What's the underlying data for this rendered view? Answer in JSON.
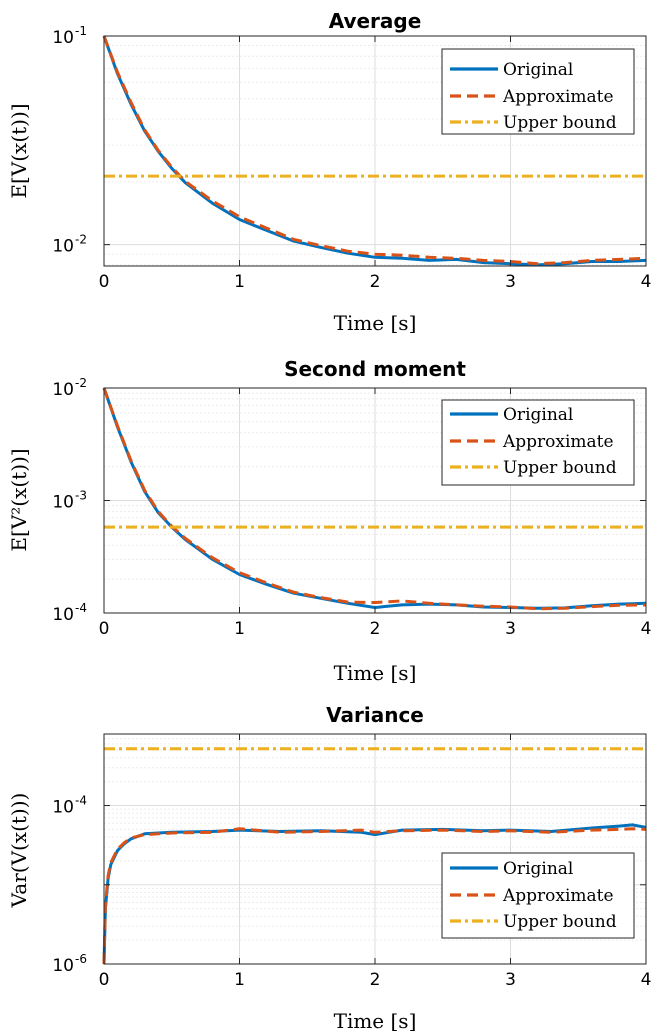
{
  "colors": {
    "original": "#0072BD",
    "approximate": "#D95319",
    "upper_bound": "#EDB120",
    "grid": "#dddddd",
    "minor_grid": "#ececec"
  },
  "chart_data": [
    {
      "type": "line",
      "title": "Average",
      "xlabel": "Time [s]",
      "ylabel": "E[V(x(t))]",
      "yscale": "log",
      "xlim": [
        0,
        4
      ],
      "ylim": [
        0.0079,
        0.1
      ],
      "xticks": [
        "0",
        "1",
        "2",
        "3",
        "4"
      ],
      "yticks": [
        {
          "base": "10",
          "exp": "-1",
          "value": 0.1
        },
        {
          "base": "10",
          "exp": "-2",
          "value": 0.01
        }
      ],
      "grid": true,
      "legend": {
        "position": "top-right",
        "entries": [
          "Original",
          "Approximate",
          "Upper bound"
        ]
      },
      "series": [
        {
          "name": "Original",
          "style": "solid",
          "x": [
            0,
            0.1,
            0.2,
            0.3,
            0.4,
            0.5,
            0.6,
            0.8,
            1.0,
            1.2,
            1.4,
            1.6,
            1.8,
            2.0,
            2.2,
            2.4,
            2.6,
            2.8,
            3.0,
            3.2,
            3.4,
            3.6,
            3.8,
            4.0
          ],
          "y": [
            0.1,
            0.066,
            0.047,
            0.035,
            0.028,
            0.0232,
            0.0198,
            0.0158,
            0.0132,
            0.0117,
            0.0104,
            0.0097,
            0.0091,
            0.0087,
            0.0086,
            0.0084,
            0.0085,
            0.0082,
            0.0081,
            0.008,
            0.0081,
            0.0083,
            0.0083,
            0.0084
          ]
        },
        {
          "name": "Approximate",
          "style": "dashed",
          "x": [
            0,
            0.1,
            0.2,
            0.3,
            0.4,
            0.5,
            0.6,
            0.8,
            1.0,
            1.2,
            1.4,
            1.6,
            1.8,
            2.0,
            2.2,
            2.4,
            2.6,
            2.8,
            3.0,
            3.2,
            3.4,
            3.6,
            3.8,
            4.0
          ],
          "y": [
            0.1,
            0.067,
            0.048,
            0.0355,
            0.0283,
            0.0235,
            0.0201,
            0.0162,
            0.0136,
            0.012,
            0.0106,
            0.0099,
            0.0093,
            0.009,
            0.0089,
            0.0087,
            0.0086,
            0.0084,
            0.0083,
            0.0081,
            0.0082,
            0.0084,
            0.0085,
            0.0086
          ]
        },
        {
          "name": "Upper bound",
          "style": "dashdot",
          "x": [
            0,
            4
          ],
          "y": [
            0.0213,
            0.0213
          ]
        }
      ]
    },
    {
      "type": "line",
      "title": "Second moment",
      "xlabel": "Time [s]",
      "ylabel": "E[V²(x(t))]",
      "yscale": "log",
      "xlim": [
        0,
        4
      ],
      "ylim": [
        0.0001,
        0.01
      ],
      "xticks": [
        "0",
        "1",
        "2",
        "3",
        "4"
      ],
      "yticks": [
        {
          "base": "10",
          "exp": "-2",
          "value": 0.01
        },
        {
          "base": "10",
          "exp": "-3",
          "value": 0.001
        },
        {
          "base": "10",
          "exp": "-4",
          "value": 0.0001
        }
      ],
      "grid": true,
      "legend": {
        "position": "top-right",
        "entries": [
          "Original",
          "Approximate",
          "Upper bound"
        ]
      },
      "series": [
        {
          "name": "Original",
          "style": "solid",
          "x": [
            0,
            0.1,
            0.2,
            0.3,
            0.4,
            0.5,
            0.6,
            0.8,
            1.0,
            1.2,
            1.4,
            1.6,
            1.8,
            2.0,
            2.2,
            2.4,
            2.6,
            2.8,
            3.0,
            3.2,
            3.4,
            3.6,
            3.8,
            4.0
          ],
          "y": [
            0.01,
            0.0045,
            0.0022,
            0.0012,
            0.00078,
            0.00058,
            0.00045,
            0.0003,
            0.00022,
            0.00018,
            0.00015,
            0.000135,
            0.000122,
            0.000112,
            0.000118,
            0.00012,
            0.000118,
            0.000113,
            0.000112,
            0.00011,
            0.000111,
            0.000116,
            0.00012,
            0.000122
          ]
        },
        {
          "name": "Approximate",
          "style": "dashed",
          "x": [
            0,
            0.1,
            0.2,
            0.3,
            0.4,
            0.5,
            0.6,
            0.8,
            1.0,
            1.2,
            1.4,
            1.6,
            1.8,
            2.0,
            2.2,
            2.4,
            2.6,
            2.8,
            3.0,
            3.2,
            3.4,
            3.6,
            3.8,
            4.0
          ],
          "y": [
            0.01,
            0.0046,
            0.00225,
            0.00123,
            0.0008,
            0.00059,
            0.00046,
            0.00031,
            0.000228,
            0.000185,
            0.000153,
            0.000137,
            0.000125,
            0.000124,
            0.000128,
            0.000122,
            0.000118,
            0.000115,
            0.000113,
            0.000109,
            0.00011,
            0.000114,
            0.000117,
            0.000118
          ]
        },
        {
          "name": "Upper bound",
          "style": "dashdot",
          "x": [
            0,
            4
          ],
          "y": [
            0.00058,
            0.00058
          ]
        }
      ]
    },
    {
      "type": "line",
      "title": "Variance",
      "xlabel": "Time [s]",
      "ylabel": "Var(V(x(t)))",
      "yscale": "log",
      "xlim": [
        0,
        4
      ],
      "ylim": [
        1e-06,
        0.0008
      ],
      "xticks": [
        "0",
        "1",
        "2",
        "3",
        "4"
      ],
      "yticks": [
        {
          "base": "10",
          "exp": "-4",
          "value": 0.0001
        },
        {
          "base": "10",
          "exp": "-6",
          "value": 1e-06
        }
      ],
      "grid": true,
      "legend": {
        "position": "bottom-right",
        "entries": [
          "Original",
          "Approximate",
          "Upper bound"
        ]
      },
      "series": [
        {
          "name": "Original",
          "style": "solid",
          "x": [
            0,
            0.01,
            0.03,
            0.05,
            0.1,
            0.15,
            0.2,
            0.3,
            0.5,
            0.8,
            1.0,
            1.3,
            1.6,
            1.9,
            2.0,
            2.2,
            2.5,
            2.8,
            3.0,
            3.3,
            3.6,
            3.8,
            3.9,
            4.0
          ],
          "y": [
            1e-06,
            5e-06,
            1.2e-05,
            1.8e-05,
            2.7e-05,
            3.3e-05,
            3.8e-05,
            4.4e-05,
            4.6e-05,
            4.7e-05,
            4.9e-05,
            4.7e-05,
            4.8e-05,
            4.6e-05,
            4.3e-05,
            4.9e-05,
            5e-05,
            4.8e-05,
            4.9e-05,
            4.7e-05,
            5.2e-05,
            5.5e-05,
            5.7e-05,
            5.3e-05
          ]
        },
        {
          "name": "Approximate",
          "style": "dashed",
          "x": [
            0,
            0.01,
            0.03,
            0.05,
            0.1,
            0.15,
            0.2,
            0.3,
            0.5,
            0.8,
            1.0,
            1.3,
            1.6,
            1.9,
            2.0,
            2.2,
            2.5,
            2.8,
            3.0,
            3.3,
            3.6,
            3.8,
            3.9,
            4.0
          ],
          "y": [
            1e-06,
            5.5e-06,
            1.3e-05,
            1.9e-05,
            2.8e-05,
            3.4e-05,
            3.9e-05,
            4.3e-05,
            4.5e-05,
            4.6e-05,
            5.1e-05,
            4.6e-05,
            4.7e-05,
            4.9e-05,
            4.6e-05,
            4.8e-05,
            4.9e-05,
            4.7e-05,
            4.8e-05,
            4.6e-05,
            4.9e-05,
            5e-05,
            5.1e-05,
            5e-05
          ]
        },
        {
          "name": "Upper bound",
          "style": "dashdot",
          "x": [
            0,
            4
          ],
          "y": [
            0.00052,
            0.00052
          ]
        }
      ]
    }
  ]
}
